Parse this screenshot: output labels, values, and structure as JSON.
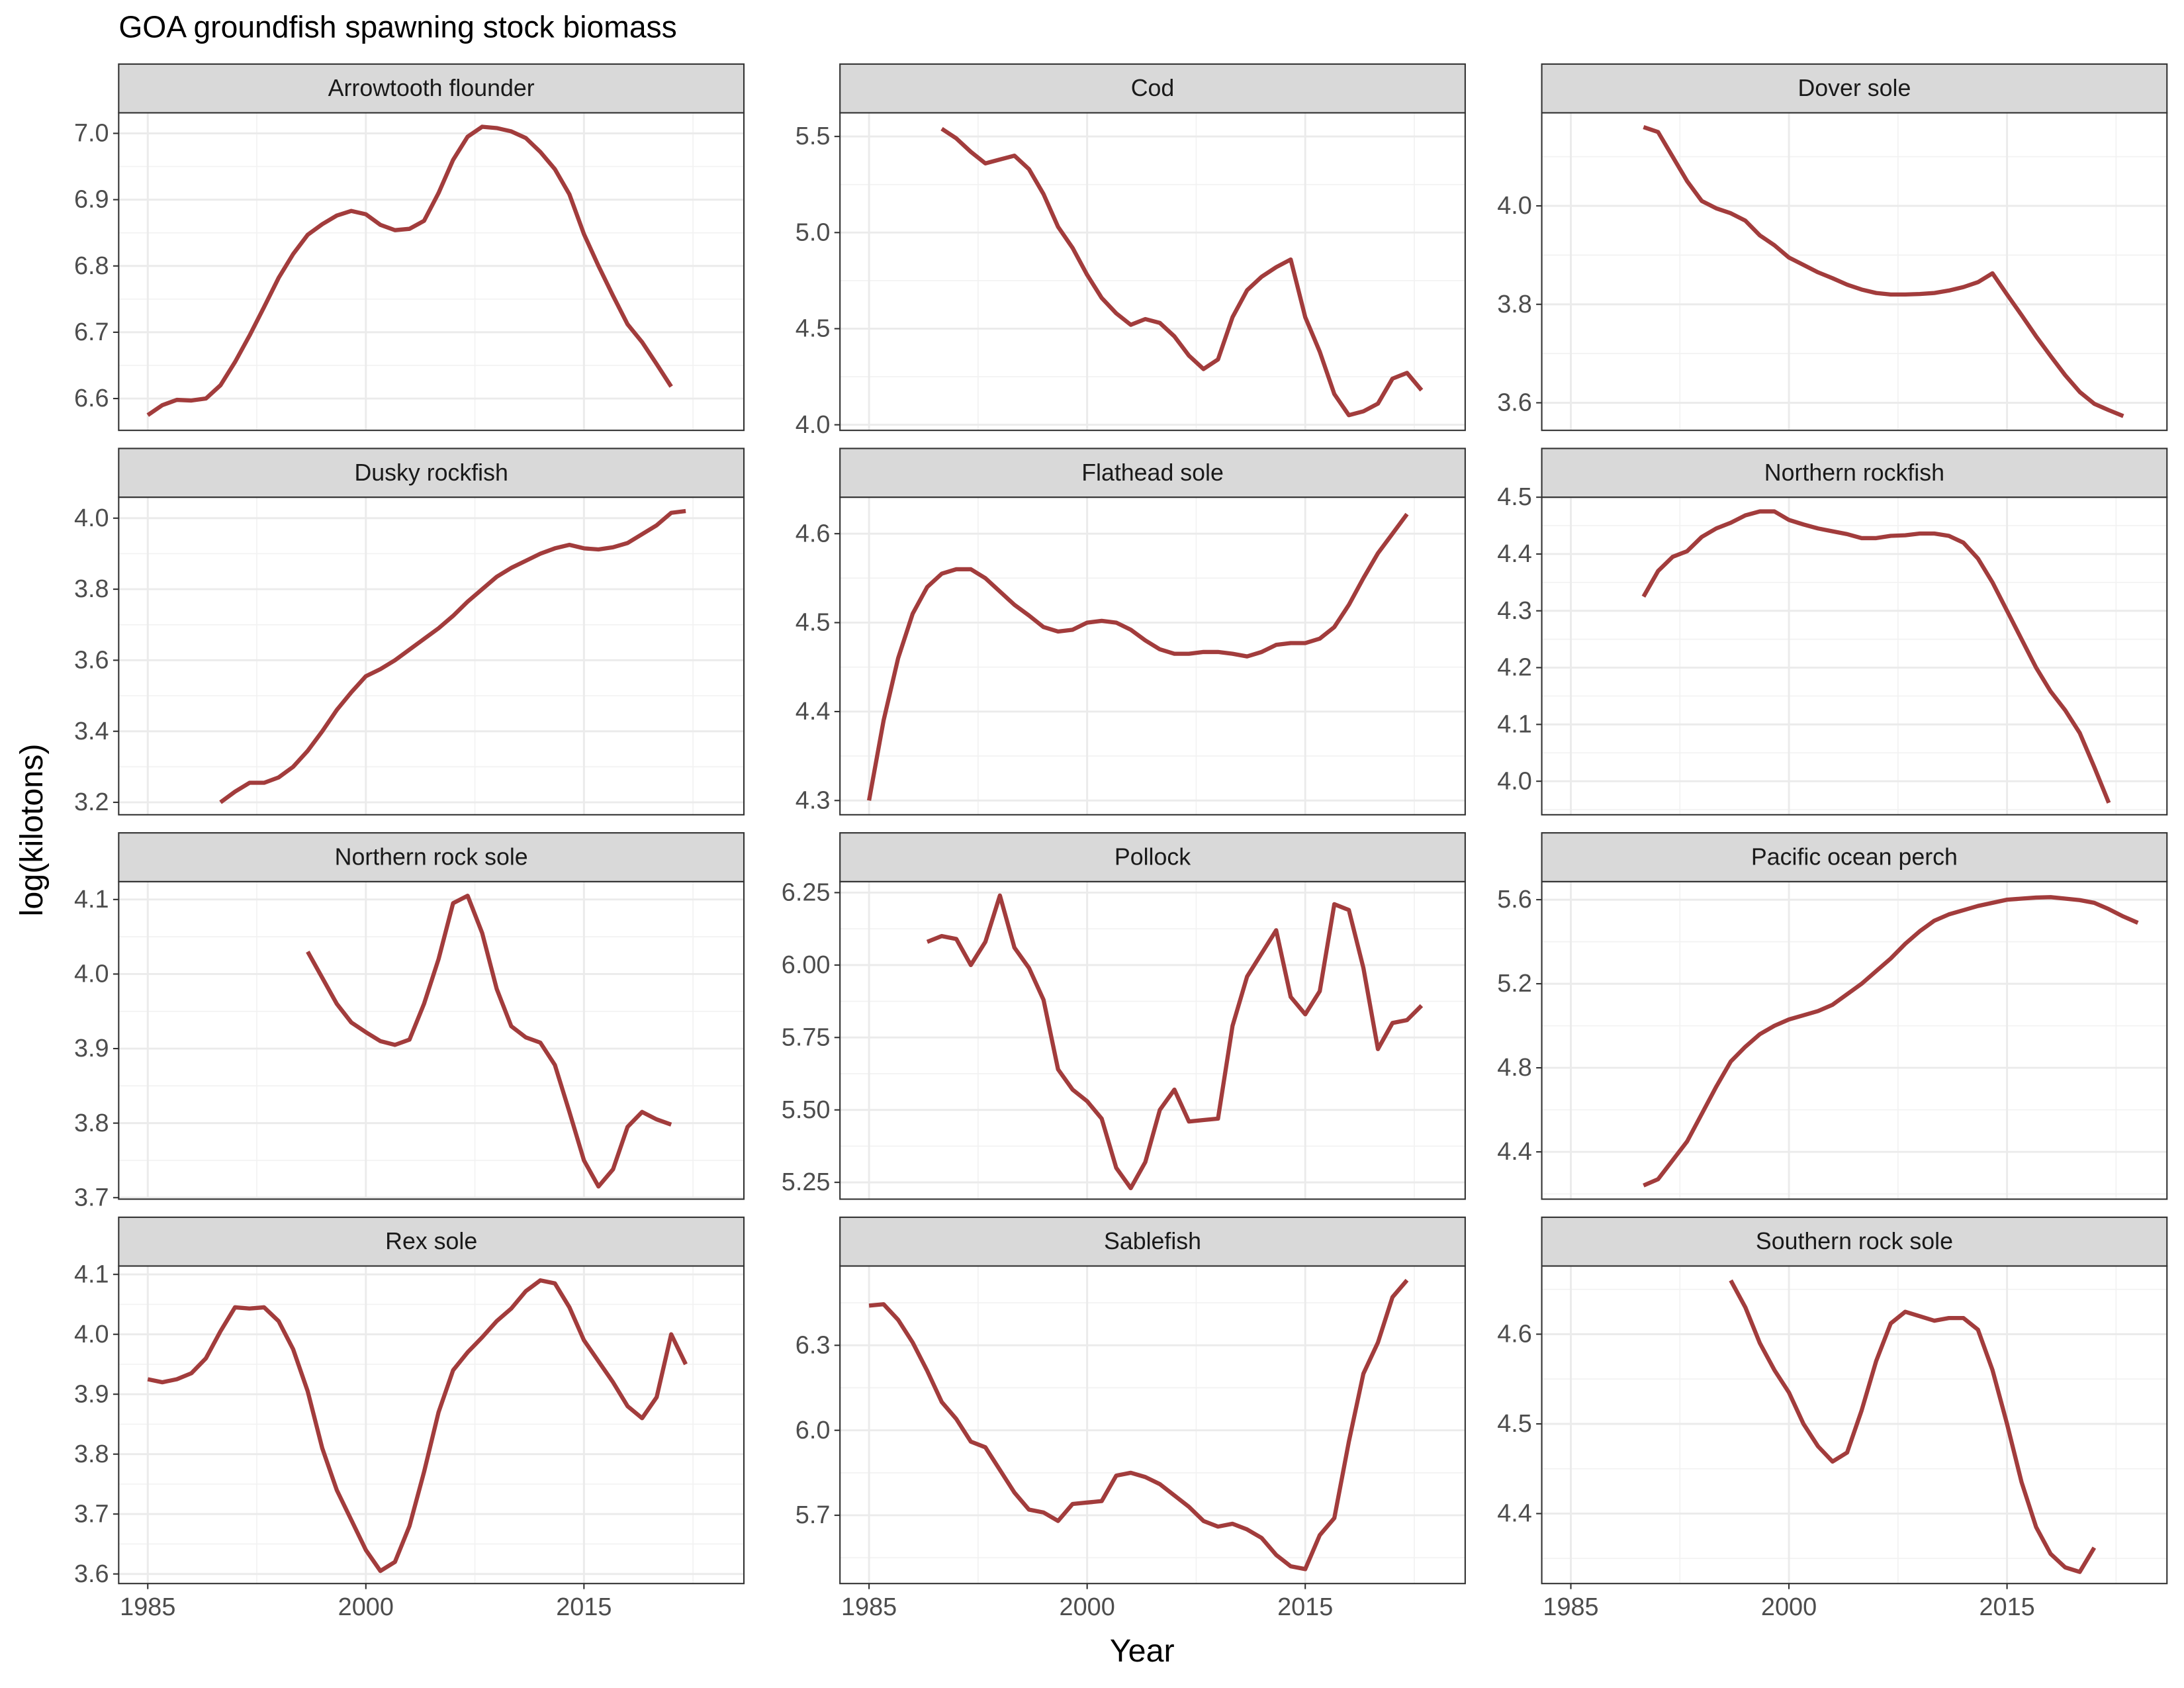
{
  "title": "GOA groundfish spawning stock biomass",
  "x_label": "Year",
  "y_label": "log(kilotons)",
  "chart_data": [
    {
      "type": "line",
      "title": "Arrowtooth flounder",
      "color": "#a23c3c",
      "grid": true,
      "x": [
        1985,
        1986,
        1987,
        1988,
        1989,
        1990,
        1991,
        1992,
        1993,
        1994,
        1995,
        1996,
        1997,
        1998,
        1999,
        2000,
        2001,
        2002,
        2003,
        2004,
        2005,
        2006,
        2007,
        2008,
        2009,
        2010,
        2011,
        2012,
        2013,
        2014,
        2015,
        2016,
        2017,
        2018,
        2019,
        2020,
        2021
      ],
      "values": [
        6.575,
        6.59,
        6.598,
        6.597,
        6.6,
        6.62,
        6.655,
        6.695,
        6.738,
        6.782,
        6.818,
        6.847,
        6.863,
        6.876,
        6.883,
        6.878,
        6.862,
        6.854,
        6.856,
        6.868,
        6.91,
        6.96,
        6.995,
        7.01,
        7.008,
        7.003,
        6.993,
        6.972,
        6.946,
        6.908,
        6.848,
        6.8,
        6.755,
        6.712,
        6.685,
        6.652,
        6.618
      ],
      "xlim": [
        1983,
        2026
      ],
      "xticks": [
        1985,
        2000,
        2015
      ],
      "ylim": [
        6.552,
        7.031
      ],
      "yticks": [
        6.6,
        6.7,
        6.8,
        6.9,
        {
          "value": 7,
          "label": "7.0"
        }
      ]
    },
    {
      "type": "line",
      "title": "Cod",
      "color": "#a23c3c",
      "grid": true,
      "x": [
        1990,
        1991,
        1992,
        1993,
        1994,
        1995,
        1996,
        1997,
        1998,
        1999,
        2000,
        2001,
        2002,
        2003,
        2004,
        2005,
        2006,
        2007,
        2008,
        2009,
        2010,
        2011,
        2012,
        2013,
        2014,
        2015,
        2016,
        2017,
        2018,
        2019,
        2020,
        2021,
        2022,
        2023
      ],
      "values": [
        5.54,
        5.49,
        5.42,
        5.36,
        5.38,
        5.4,
        5.33,
        5.2,
        5.03,
        4.92,
        4.78,
        4.66,
        4.58,
        4.52,
        4.55,
        4.53,
        4.46,
        4.36,
        4.29,
        4.34,
        4.56,
        4.7,
        4.77,
        4.82,
        4.86,
        4.56,
        4.38,
        4.16,
        4.05,
        4.07,
        4.11,
        4.24,
        4.27,
        4.18
      ],
      "xlim": [
        1983,
        2026
      ],
      "xticks": [
        1985,
        2000,
        2015
      ],
      "ylim": [
        3.971,
        5.623
      ],
      "yticks": [
        {
          "value": 4,
          "label": "4.0"
        },
        4.5,
        {
          "value": 5,
          "label": "5.0"
        },
        5.5
      ]
    },
    {
      "type": "line",
      "title": "Dover sole",
      "color": "#a23c3c",
      "grid": true,
      "x": [
        1990,
        1991,
        1992,
        1993,
        1994,
        1995,
        1996,
        1997,
        1998,
        1999,
        2000,
        2001,
        2002,
        2003,
        2004,
        2005,
        2006,
        2007,
        2008,
        2009,
        2010,
        2011,
        2012,
        2013,
        2014,
        2015,
        2016,
        2017,
        2018,
        2019,
        2020,
        2021,
        2022,
        2023
      ],
      "values": [
        4.16,
        4.15,
        4.1,
        4.05,
        4.01,
        3.995,
        3.985,
        3.97,
        3.94,
        3.92,
        3.895,
        3.88,
        3.865,
        3.853,
        3.84,
        3.83,
        3.823,
        3.82,
        3.82,
        3.821,
        3.823,
        3.828,
        3.835,
        3.845,
        3.863,
        3.82,
        3.778,
        3.735,
        3.695,
        3.656,
        3.622,
        3.598,
        3.585,
        3.573
      ],
      "xlim": [
        1983,
        2026
      ],
      "xticks": [
        1985,
        2000,
        2015
      ],
      "ylim": [
        3.544,
        4.189
      ],
      "yticks": [
        3.6,
        3.8,
        {
          "value": 4,
          "label": "4.0"
        }
      ]
    },
    {
      "type": "line",
      "title": "Dusky rockfish",
      "color": "#a23c3c",
      "grid": true,
      "x": [
        1990,
        1991,
        1992,
        1993,
        1994,
        1995,
        1996,
        1997,
        1998,
        1999,
        2000,
        2001,
        2002,
        2003,
        2004,
        2005,
        2006,
        2007,
        2008,
        2009,
        2010,
        2011,
        2012,
        2013,
        2014,
        2015,
        2016,
        2017,
        2018,
        2019,
        2020,
        2021,
        2022
      ],
      "values": [
        3.2,
        3.23,
        3.255,
        3.255,
        3.27,
        3.3,
        3.345,
        3.4,
        3.46,
        3.51,
        3.555,
        3.575,
        3.6,
        3.63,
        3.66,
        3.69,
        3.725,
        3.765,
        3.8,
        3.835,
        3.86,
        3.88,
        3.9,
        3.915,
        3.925,
        3.915,
        3.912,
        3.918,
        3.93,
        3.955,
        3.98,
        4.015,
        4.02
      ],
      "xlim": [
        1983,
        2026
      ],
      "xticks": [
        1985,
        2000,
        2015
      ],
      "ylim": [
        3.165,
        4.059
      ],
      "yticks": [
        3.2,
        3.4,
        3.6,
        3.8,
        {
          "value": 4,
          "label": "4.0"
        }
      ]
    },
    {
      "type": "line",
      "title": "Flathead sole",
      "color": "#a23c3c",
      "grid": true,
      "x": [
        1985,
        1986,
        1987,
        1988,
        1989,
        1990,
        1991,
        1992,
        1993,
        1994,
        1995,
        1996,
        1997,
        1998,
        1999,
        2000,
        2001,
        2002,
        2003,
        2004,
        2005,
        2006,
        2007,
        2008,
        2009,
        2010,
        2011,
        2012,
        2013,
        2014,
        2015,
        2016,
        2017,
        2018,
        2019,
        2020,
        2021,
        2022
      ],
      "values": [
        4.3,
        4.39,
        4.46,
        4.51,
        4.54,
        4.555,
        4.56,
        4.56,
        4.55,
        4.535,
        4.52,
        4.508,
        4.495,
        4.49,
        4.492,
        4.5,
        4.502,
        4.5,
        4.492,
        4.48,
        4.47,
        4.465,
        4.465,
        4.467,
        4.467,
        4.465,
        4.462,
        4.467,
        4.475,
        4.477,
        4.477,
        4.482,
        4.495,
        4.52,
        4.55,
        4.578,
        4.6,
        4.622
      ],
      "xlim": [
        1983,
        2026
      ],
      "xticks": [
        1985,
        2000,
        2015
      ],
      "ylim": [
        4.284,
        4.641
      ],
      "yticks": [
        4.3,
        4.4,
        4.5,
        4.6
      ]
    },
    {
      "type": "line",
      "title": "Northern rockfish",
      "color": "#a23c3c",
      "grid": true,
      "x": [
        1990,
        1991,
        1992,
        1993,
        1994,
        1995,
        1996,
        1997,
        1998,
        1999,
        2000,
        2001,
        2002,
        2003,
        2004,
        2005,
        2006,
        2007,
        2008,
        2009,
        2010,
        2011,
        2012,
        2013,
        2014,
        2015,
        2016,
        2017,
        2018,
        2019,
        2020,
        2021,
        2022
      ],
      "values": [
        4.325,
        4.37,
        4.395,
        4.405,
        4.43,
        4.445,
        4.455,
        4.468,
        4.475,
        4.475,
        4.46,
        4.452,
        4.445,
        4.44,
        4.435,
        4.428,
        4.428,
        4.432,
        4.433,
        4.436,
        4.436,
        4.432,
        4.42,
        4.392,
        4.35,
        4.3,
        4.25,
        4.2,
        4.158,
        4.125,
        4.085,
        4.025,
        3.962
      ],
      "xlim": [
        1983,
        2026
      ],
      "xticks": [
        1985,
        2000,
        2015
      ],
      "ylim": [
        3.941,
        4.5
      ],
      "yticks": [
        {
          "value": 4,
          "label": "4.0"
        },
        4.1,
        4.2,
        4.3,
        4.4,
        4.5
      ]
    },
    {
      "type": "line",
      "title": "Northern rock sole",
      "color": "#a23c3c",
      "grid": true,
      "x": [
        1996,
        1997,
        1998,
        1999,
        2000,
        2001,
        2002,
        2003,
        2004,
        2005,
        2006,
        2007,
        2008,
        2009,
        2010,
        2011,
        2012,
        2013,
        2014,
        2015,
        2016,
        2017,
        2018,
        2019,
        2020,
        2021
      ],
      "values": [
        4.03,
        3.995,
        3.96,
        3.935,
        3.922,
        3.91,
        3.905,
        3.912,
        3.96,
        4.02,
        4.095,
        4.105,
        4.055,
        3.98,
        3.93,
        3.915,
        3.908,
        3.878,
        3.815,
        3.75,
        3.715,
        3.738,
        3.795,
        3.815,
        3.805,
        3.798
      ],
      "xlim": [
        1983,
        2026
      ],
      "xticks": [
        1985,
        2000,
        2015
      ],
      "ylim": [
        3.698,
        4.124
      ],
      "yticks": [
        3.7,
        3.8,
        3.9,
        {
          "value": 4,
          "label": "4.0"
        },
        4.1
      ]
    },
    {
      "type": "line",
      "title": "Pollock",
      "color": "#a23c3c",
      "grid": true,
      "x": [
        1989,
        1990,
        1991,
        1992,
        1993,
        1994,
        1995,
        1996,
        1997,
        1998,
        1999,
        2000,
        2001,
        2002,
        2003,
        2004,
        2005,
        2006,
        2007,
        2008,
        2009,
        2010,
        2011,
        2012,
        2013,
        2014,
        2015,
        2016,
        2017,
        2018,
        2019,
        2020,
        2021,
        2022,
        2023
      ],
      "values": [
        6.08,
        6.1,
        6.09,
        6.0,
        6.08,
        6.24,
        6.06,
        5.99,
        5.88,
        5.64,
        5.57,
        5.53,
        5.47,
        5.3,
        5.23,
        5.32,
        5.5,
        5.57,
        5.46,
        5.465,
        5.47,
        5.79,
        5.96,
        6.04,
        6.12,
        5.89,
        5.83,
        5.91,
        6.21,
        6.19,
        5.99,
        5.71,
        5.8,
        5.81,
        5.86
      ],
      "xlim": [
        1983,
        2026
      ],
      "xticks": [
        1985,
        2000,
        2015
      ],
      "ylim": [
        5.192,
        6.288
      ],
      "yticks": [
        5.25,
        {
          "value": 5.5,
          "label": "5.50"
        },
        5.75,
        {
          "value": 6,
          "label": "6.00"
        },
        6.25
      ]
    },
    {
      "type": "line",
      "title": "Pacific ocean perch",
      "color": "#a23c3c",
      "grid": true,
      "x": [
        1990,
        1991,
        1992,
        1993,
        1994,
        1995,
        1996,
        1997,
        1998,
        1999,
        2000,
        2001,
        2002,
        2003,
        2004,
        2005,
        2006,
        2007,
        2008,
        2009,
        2010,
        2011,
        2012,
        2013,
        2014,
        2015,
        2016,
        2017,
        2018,
        2019,
        2020,
        2021,
        2022,
        2023,
        2024
      ],
      "values": [
        4.24,
        4.27,
        4.36,
        4.45,
        4.58,
        4.71,
        4.83,
        4.9,
        4.96,
        5.0,
        5.03,
        5.05,
        5.07,
        5.1,
        5.15,
        5.2,
        5.26,
        5.32,
        5.39,
        5.45,
        5.5,
        5.53,
        5.55,
        5.57,
        5.585,
        5.6,
        5.605,
        5.61,
        5.612,
        5.605,
        5.598,
        5.585,
        5.555,
        5.52,
        5.49
      ],
      "xlim": [
        1983,
        2026
      ],
      "xticks": [
        1985,
        2000,
        2015
      ],
      "ylim": [
        4.175,
        5.686
      ],
      "yticks": [
        4.4,
        4.8,
        5.2,
        5.6
      ]
    },
    {
      "type": "line",
      "title": "Rex sole",
      "color": "#a23c3c",
      "grid": true,
      "x": [
        1985,
        1986,
        1987,
        1988,
        1989,
        1990,
        1991,
        1992,
        1993,
        1994,
        1995,
        1996,
        1997,
        1998,
        1999,
        2000,
        2001,
        2002,
        2003,
        2004,
        2005,
        2006,
        2007,
        2008,
        2009,
        2010,
        2011,
        2012,
        2013,
        2014,
        2015,
        2016,
        2017,
        2018,
        2019,
        2020,
        2021,
        2022
      ],
      "values": [
        3.925,
        3.92,
        3.925,
        3.935,
        3.96,
        4.005,
        4.045,
        4.043,
        4.045,
        4.022,
        3.975,
        3.905,
        3.81,
        3.74,
        3.69,
        3.64,
        3.605,
        3.62,
        3.68,
        3.77,
        3.87,
        3.94,
        3.97,
        3.995,
        4.022,
        4.043,
        4.072,
        4.09,
        4.085,
        4.045,
        3.99,
        3.955,
        3.92,
        3.88,
        3.86,
        3.895,
        4.0,
        3.95
      ],
      "xlim": [
        1983,
        2026
      ],
      "xticks": [
        1985,
        2000,
        2015
      ],
      "ylim": [
        3.584,
        4.114
      ],
      "yticks": [
        3.6,
        3.7,
        3.8,
        3.9,
        {
          "value": 4,
          "label": "4.0"
        },
        4.1
      ]
    },
    {
      "type": "line",
      "title": "Sablefish",
      "color": "#a23c3c",
      "grid": true,
      "x": [
        1985,
        1986,
        1987,
        1988,
        1989,
        1990,
        1991,
        1992,
        1993,
        1994,
        1995,
        1996,
        1997,
        1998,
        1999,
        2000,
        2001,
        2002,
        2003,
        2004,
        2005,
        2006,
        2007,
        2008,
        2009,
        2010,
        2011,
        2012,
        2013,
        2014,
        2015,
        2016,
        2017,
        2018,
        2019,
        2020,
        2021,
        2022
      ],
      "values": [
        6.44,
        6.445,
        6.39,
        6.31,
        6.21,
        6.1,
        6.04,
        5.96,
        5.94,
        5.86,
        5.78,
        5.72,
        5.71,
        5.68,
        5.74,
        5.745,
        5.75,
        5.84,
        5.85,
        5.835,
        5.81,
        5.77,
        5.73,
        5.68,
        5.66,
        5.67,
        5.65,
        5.62,
        5.56,
        5.52,
        5.51,
        5.63,
        5.69,
        5.96,
        6.2,
        6.31,
        6.47,
        6.53
      ],
      "xlim": [
        1983,
        2026
      ],
      "xticks": [
        1985,
        2000,
        2015
      ],
      "ylim": [
        5.459,
        6.58
      ],
      "yticks": [
        5.7,
        {
          "value": 6,
          "label": "6.0"
        },
        6.3
      ]
    },
    {
      "type": "line",
      "title": "Southern rock sole",
      "color": "#a23c3c",
      "grid": true,
      "x": [
        1996,
        1997,
        1998,
        1999,
        2000,
        2001,
        2002,
        2003,
        2004,
        2005,
        2006,
        2007,
        2008,
        2009,
        2010,
        2011,
        2012,
        2013,
        2014,
        2015,
        2016,
        2017,
        2018,
        2019,
        2020,
        2021
      ],
      "values": [
        4.66,
        4.63,
        4.59,
        4.56,
        4.535,
        4.5,
        4.475,
        4.458,
        4.468,
        4.515,
        4.57,
        4.612,
        4.625,
        4.62,
        4.615,
        4.618,
        4.618,
        4.605,
        4.56,
        4.5,
        4.435,
        4.385,
        4.355,
        4.34,
        4.335,
        4.362
      ],
      "xlim": [
        1983,
        2026
      ],
      "xticks": [
        1985,
        2000,
        2015
      ],
      "ylim": [
        4.322,
        4.676
      ],
      "yticks": [
        4.4,
        4.5,
        4.6
      ]
    }
  ]
}
